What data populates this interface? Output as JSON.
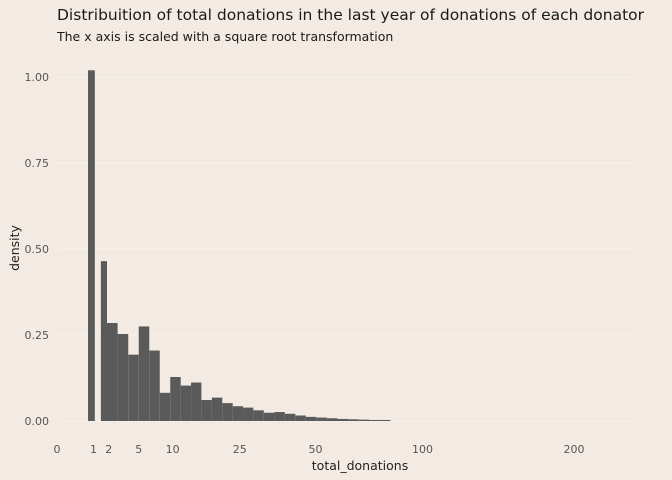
{
  "chart_data": {
    "type": "bar",
    "title": "Distribuition of total donations in the last year of donations of each donator",
    "subtitle": "The x axis is scaled with a square root transformation",
    "xlabel": "total_donations",
    "ylabel": "density",
    "x_scale": "sqrt",
    "xlim": [
      0,
      250
    ],
    "ylim": [
      0,
      1.05
    ],
    "x_ticks": [
      0,
      1,
      2,
      5,
      10,
      25,
      50,
      100,
      200
    ],
    "y_ticks": [
      0.0,
      0.25,
      0.5,
      0.75,
      1.0
    ],
    "y_tick_labels": [
      "0.00",
      "0.25",
      "0.50",
      "0.75",
      "1.00"
    ],
    "bar_color": "#5a5a5a",
    "background_color": "#f3ebe3",
    "bins": [
      {
        "x0": 0.72,
        "x1": 1.07,
        "density": 1.02
      },
      {
        "x0": 1.44,
        "x1": 1.87,
        "density": 0.465
      },
      {
        "x0": 1.87,
        "x1": 2.75,
        "density": 0.285
      },
      {
        "x0": 2.75,
        "x1": 3.8,
        "density": 0.253
      },
      {
        "x0": 3.8,
        "x1": 5.0,
        "density": 0.193
      },
      {
        "x0": 5.0,
        "x1": 6.37,
        "density": 0.275
      },
      {
        "x0": 6.37,
        "x1": 7.9,
        "density": 0.205
      },
      {
        "x0": 7.9,
        "x1": 9.6,
        "density": 0.082
      },
      {
        "x0": 9.6,
        "x1": 11.45,
        "density": 0.128
      },
      {
        "x0": 11.45,
        "x1": 13.45,
        "density": 0.103
      },
      {
        "x0": 13.45,
        "x1": 15.6,
        "density": 0.112
      },
      {
        "x0": 15.6,
        "x1": 17.95,
        "density": 0.061
      },
      {
        "x0": 17.95,
        "x1": 20.45,
        "density": 0.068
      },
      {
        "x0": 20.45,
        "x1": 23.1,
        "density": 0.052
      },
      {
        "x0": 23.1,
        "x1": 25.9,
        "density": 0.043
      },
      {
        "x0": 25.9,
        "x1": 28.85,
        "density": 0.039
      },
      {
        "x0": 28.85,
        "x1": 32.0,
        "density": 0.031
      },
      {
        "x0": 32.0,
        "x1": 35.35,
        "density": 0.024
      },
      {
        "x0": 35.35,
        "x1": 38.85,
        "density": 0.026
      },
      {
        "x0": 38.85,
        "x1": 42.5,
        "density": 0.021
      },
      {
        "x0": 42.5,
        "x1": 46.3,
        "density": 0.016
      },
      {
        "x0": 46.3,
        "x1": 50.3,
        "density": 0.012
      },
      {
        "x0": 50.3,
        "x1": 54.5,
        "density": 0.01
      },
      {
        "x0": 54.5,
        "x1": 58.9,
        "density": 0.008
      },
      {
        "x0": 58.9,
        "x1": 63.4,
        "density": 0.006
      },
      {
        "x0": 63.4,
        "x1": 68.1,
        "density": 0.005
      },
      {
        "x0": 68.1,
        "x1": 73.0,
        "density": 0.004
      },
      {
        "x0": 73.0,
        "x1": 78.0,
        "density": 0.003
      },
      {
        "x0": 78.0,
        "x1": 83.2,
        "density": 0.003
      }
    ]
  }
}
